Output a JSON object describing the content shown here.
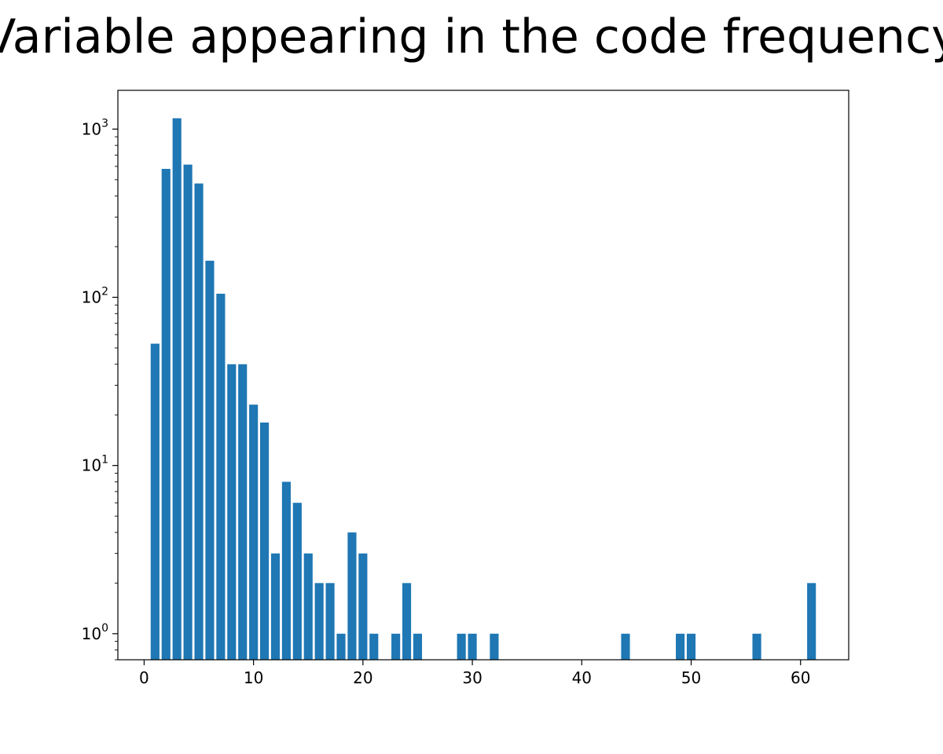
{
  "chart_data": {
    "type": "bar",
    "title": "Variable appearing in the code frequency",
    "xlabel": "",
    "ylabel": "",
    "yscale": "log",
    "xlim": [
      -2.4,
      64.4
    ],
    "ylim": [
      0.7,
      1700
    ],
    "grid": false,
    "bar_color": "#1f77b4",
    "x_ticks": [
      0,
      10,
      20,
      30,
      40,
      50,
      60
    ],
    "y_ticks": [
      {
        "value": 1,
        "base": "10",
        "exp": "0"
      },
      {
        "value": 10,
        "base": "10",
        "exp": "1"
      },
      {
        "value": 100,
        "base": "10",
        "exp": "2"
      },
      {
        "value": 1000,
        "base": "10",
        "exp": "3"
      }
    ],
    "x": [
      1,
      2,
      3,
      4,
      5,
      6,
      7,
      8,
      9,
      10,
      11,
      12,
      13,
      14,
      15,
      16,
      17,
      18,
      19,
      20,
      21,
      23,
      24,
      25,
      29,
      30,
      32,
      44,
      49,
      50,
      56,
      61
    ],
    "values": [
      53,
      580,
      1160,
      615,
      475,
      165,
      105,
      40,
      40,
      23,
      18,
      3,
      8,
      6,
      3,
      2,
      2,
      1,
      4,
      3,
      1,
      1,
      2,
      1,
      1,
      1,
      1,
      1,
      1,
      1,
      1,
      2
    ]
  }
}
